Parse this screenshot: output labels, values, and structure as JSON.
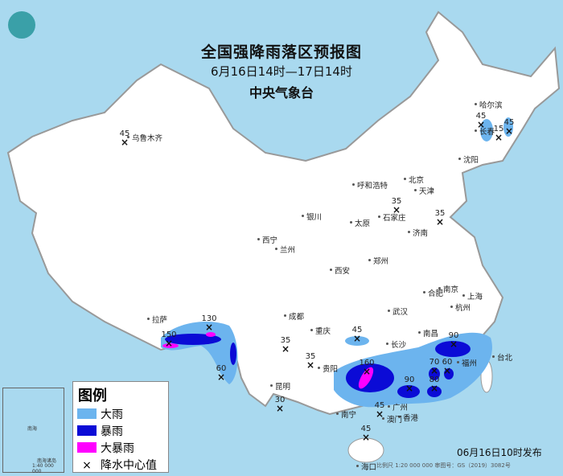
{
  "title": "全国强降雨落区预报图",
  "period": "6月16日14时—17日14时",
  "issuer": "中央气象台",
  "publish_time": "06月16日10时发布",
  "scale_note": "比例尺 1:20 000 000   审图号：GS（2019）3082号",
  "inset": {
    "labels": [
      "南海",
      "南海诸岛",
      "1:40 000 000"
    ]
  },
  "legend": {
    "title": "图例",
    "items": [
      {
        "label": "大雨",
        "color": "#6cb4ee"
      },
      {
        "label": "暴雨",
        "color": "#0b0bd6"
      },
      {
        "label": "大暴雨",
        "color": "#ff00ff"
      },
      {
        "label": "降水中心值",
        "symbol": "×"
      }
    ]
  },
  "colors": {
    "sea": "#a9d9ef",
    "land": "#ffffff",
    "border": "#999999"
  },
  "cities": [
    "乌鲁木齐",
    "哈尔滨",
    "长春",
    "沈阳",
    "北京",
    "天津",
    "呼和浩特",
    "石家庄",
    "太原",
    "济南",
    "银川",
    "西宁",
    "兰州",
    "郑州",
    "西安",
    "合肥",
    "南京",
    "上海",
    "杭州",
    "武汉",
    "成都",
    "重庆",
    "拉萨",
    "长沙",
    "南昌",
    "福州",
    "台北",
    "贵阳",
    "昆明",
    "南宁",
    "广州",
    "香港",
    "澳门",
    "海口"
  ],
  "rain_centers": [
    45,
    45,
    15,
    45,
    35,
    35,
    150,
    130,
    60,
    35,
    45,
    35,
    30,
    160,
    90,
    70,
    60,
    90,
    80,
    45,
    45
  ]
}
